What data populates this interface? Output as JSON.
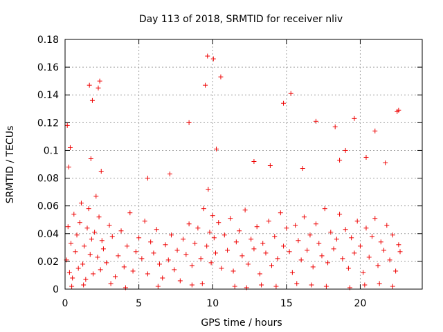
{
  "chart_data": {
    "type": "scatter",
    "title": "Day 113 of 2018, SRMTID for receiver nliv",
    "xlabel": "GPS time / hours",
    "ylabel": "SRMTID / TECUs",
    "xlim": [
      0,
      24.2
    ],
    "ylim": [
      0,
      0.18
    ],
    "grid": true,
    "marker": "+",
    "marker_color": "#ee0000",
    "x_ticks": [
      0,
      5,
      10,
      15,
      20
    ],
    "x_tick_labels": [
      "0",
      "5",
      "10",
      "15",
      "20"
    ],
    "y_ticks": [
      0,
      0.02,
      0.04,
      0.06,
      0.08,
      0.1,
      0.12,
      0.14,
      0.16,
      0.18
    ],
    "y_tick_labels": [
      "0",
      "0.02",
      "0.04",
      "0.06",
      "0.08",
      "0.1",
      "0.12",
      "0.14",
      "0.16",
      "0.18"
    ],
    "x": [
      0.1,
      0.2,
      0.3,
      0.4,
      0.5,
      0.6,
      0.7,
      0.8,
      0.9,
      1.0,
      1.1,
      1.2,
      1.3,
      1.4,
      1.5,
      1.6,
      1.7,
      1.8,
      1.9,
      2.0,
      2.1,
      2.2,
      2.3,
      2.4,
      2.5,
      2.6,
      2.8,
      3.0,
      3.2,
      3.4,
      3.6,
      3.8,
      4.0,
      4.2,
      4.4,
      4.6,
      4.8,
      5.0,
      5.2,
      5.4,
      5.6,
      5.8,
      6.0,
      6.2,
      6.4,
      6.6,
      6.8,
      7.0,
      7.2,
      7.4,
      7.6,
      7.8,
      8.0,
      8.2,
      8.4,
      8.6,
      8.8,
      9.0,
      9.2,
      9.4,
      9.6,
      9.7,
      9.8,
      9.9,
      10.0,
      10.1,
      10.2,
      10.4,
      10.6,
      10.8,
      11.0,
      11.2,
      11.4,
      11.6,
      11.8,
      12.0,
      12.2,
      12.4,
      12.6,
      12.8,
      13.0,
      13.2,
      13.4,
      13.6,
      13.8,
      14.0,
      14.2,
      14.4,
      14.6,
      14.8,
      15.0,
      15.2,
      15.4,
      15.6,
      15.8,
      16.0,
      16.2,
      16.4,
      16.6,
      16.8,
      17.0,
      17.2,
      17.4,
      17.6,
      17.8,
      18.0,
      18.2,
      18.4,
      18.6,
      18.8,
      19.0,
      19.2,
      19.4,
      19.6,
      19.8,
      20.0,
      20.2,
      20.4,
      20.6,
      20.8,
      21.0,
      21.2,
      21.4,
      21.6,
      21.8,
      22.0,
      22.2,
      22.4,
      22.6,
      22.7,
      0.15,
      0.35,
      1.65,
      1.85,
      2.25,
      2.35,
      8.4,
      9.5,
      9.65,
      10.05,
      10.55,
      14.8,
      15.3,
      17.0,
      18.3,
      19.0,
      19.6,
      21.0,
      22.5,
      22.6,
      0.25,
      1.75,
      2.45,
      5.6,
      7.1,
      10.25,
      12.8,
      13.9,
      16.1,
      18.6,
      20.4,
      21.7,
      0.45,
      1.25,
      3.1,
      4.1,
      6.3,
      8.6,
      9.3,
      11.5,
      12.3,
      13.3,
      14.3,
      15.7,
      16.7,
      17.7,
      19.3,
      20.3,
      21.3,
      22.2
    ],
    "y": [
      0.021,
      0.045,
      0.012,
      0.033,
      0.008,
      0.054,
      0.027,
      0.039,
      0.015,
      0.048,
      0.062,
      0.018,
      0.031,
      0.007,
      0.044,
      0.058,
      0.025,
      0.036,
      0.011,
      0.041,
      0.067,
      0.023,
      0.052,
      0.014,
      0.035,
      0.029,
      0.019,
      0.046,
      0.038,
      0.009,
      0.024,
      0.042,
      0.016,
      0.031,
      0.055,
      0.013,
      0.027,
      0.037,
      0.022,
      0.049,
      0.011,
      0.034,
      0.026,
      0.043,
      0.018,
      0.008,
      0.032,
      0.021,
      0.039,
      0.014,
      0.028,
      0.006,
      0.036,
      0.025,
      0.047,
      0.017,
      0.033,
      0.044,
      0.022,
      0.058,
      0.031,
      0.072,
      0.041,
      0.019,
      0.053,
      0.037,
      0.026,
      0.048,
      0.015,
      0.039,
      0.028,
      0.051,
      0.013,
      0.034,
      0.042,
      0.024,
      0.057,
      0.018,
      0.036,
      0.029,
      0.045,
      0.011,
      0.033,
      0.026,
      0.049,
      0.017,
      0.038,
      0.022,
      0.055,
      0.031,
      0.044,
      0.027,
      0.012,
      0.046,
      0.035,
      0.021,
      0.052,
      0.028,
      0.039,
      0.016,
      0.047,
      0.033,
      0.024,
      0.058,
      0.019,
      0.041,
      0.029,
      0.036,
      0.054,
      0.022,
      0.043,
      0.015,
      0.037,
      0.026,
      0.049,
      0.031,
      0.012,
      0.044,
      0.023,
      0.038,
      0.051,
      0.017,
      0.034,
      0.028,
      0.046,
      0.021,
      0.039,
      0.013,
      0.032,
      0.027,
      0.118,
      0.102,
      0.147,
      0.136,
      0.145,
      0.15,
      0.12,
      0.147,
      0.168,
      0.166,
      0.153,
      0.134,
      0.141,
      0.121,
      0.117,
      0.1,
      0.123,
      0.114,
      0.128,
      0.129,
      0.088,
      0.094,
      0.085,
      0.08,
      0.083,
      0.101,
      0.092,
      0.089,
      0.087,
      0.093,
      0.095,
      0.091,
      0.002,
      0.003,
      0.004,
      0.001,
      0.002,
      0.003,
      0.004,
      0.002,
      0.001,
      0.003,
      0.002,
      0.004,
      0.003,
      0.002,
      0.001,
      0.003,
      0.004,
      0.002
    ]
  }
}
